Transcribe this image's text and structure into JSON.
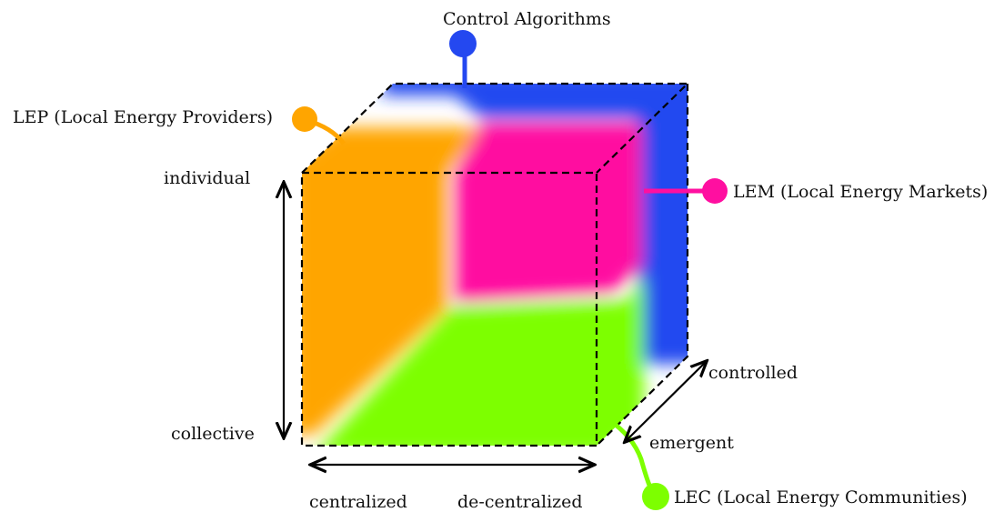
{
  "labels": {
    "control_algorithms": "Control Algorithms",
    "lep": "LEP (Local Energy Providers)",
    "lem": "LEM (Local Energy Markets)",
    "lec": "LEC (Local Energy Communities)"
  },
  "axes": {
    "vertical_top": "individual",
    "vertical_bottom": "collective",
    "horizontal_left": "centralized",
    "horizontal_right": "de-centralized",
    "depth_back": "controlled",
    "depth_front": "emergent"
  },
  "colors": {
    "control_algorithms": "#2448f0",
    "lep": "#ffa500",
    "lem": "#ff0fa0",
    "lec": "#7dff00",
    "edges": "#000000"
  }
}
